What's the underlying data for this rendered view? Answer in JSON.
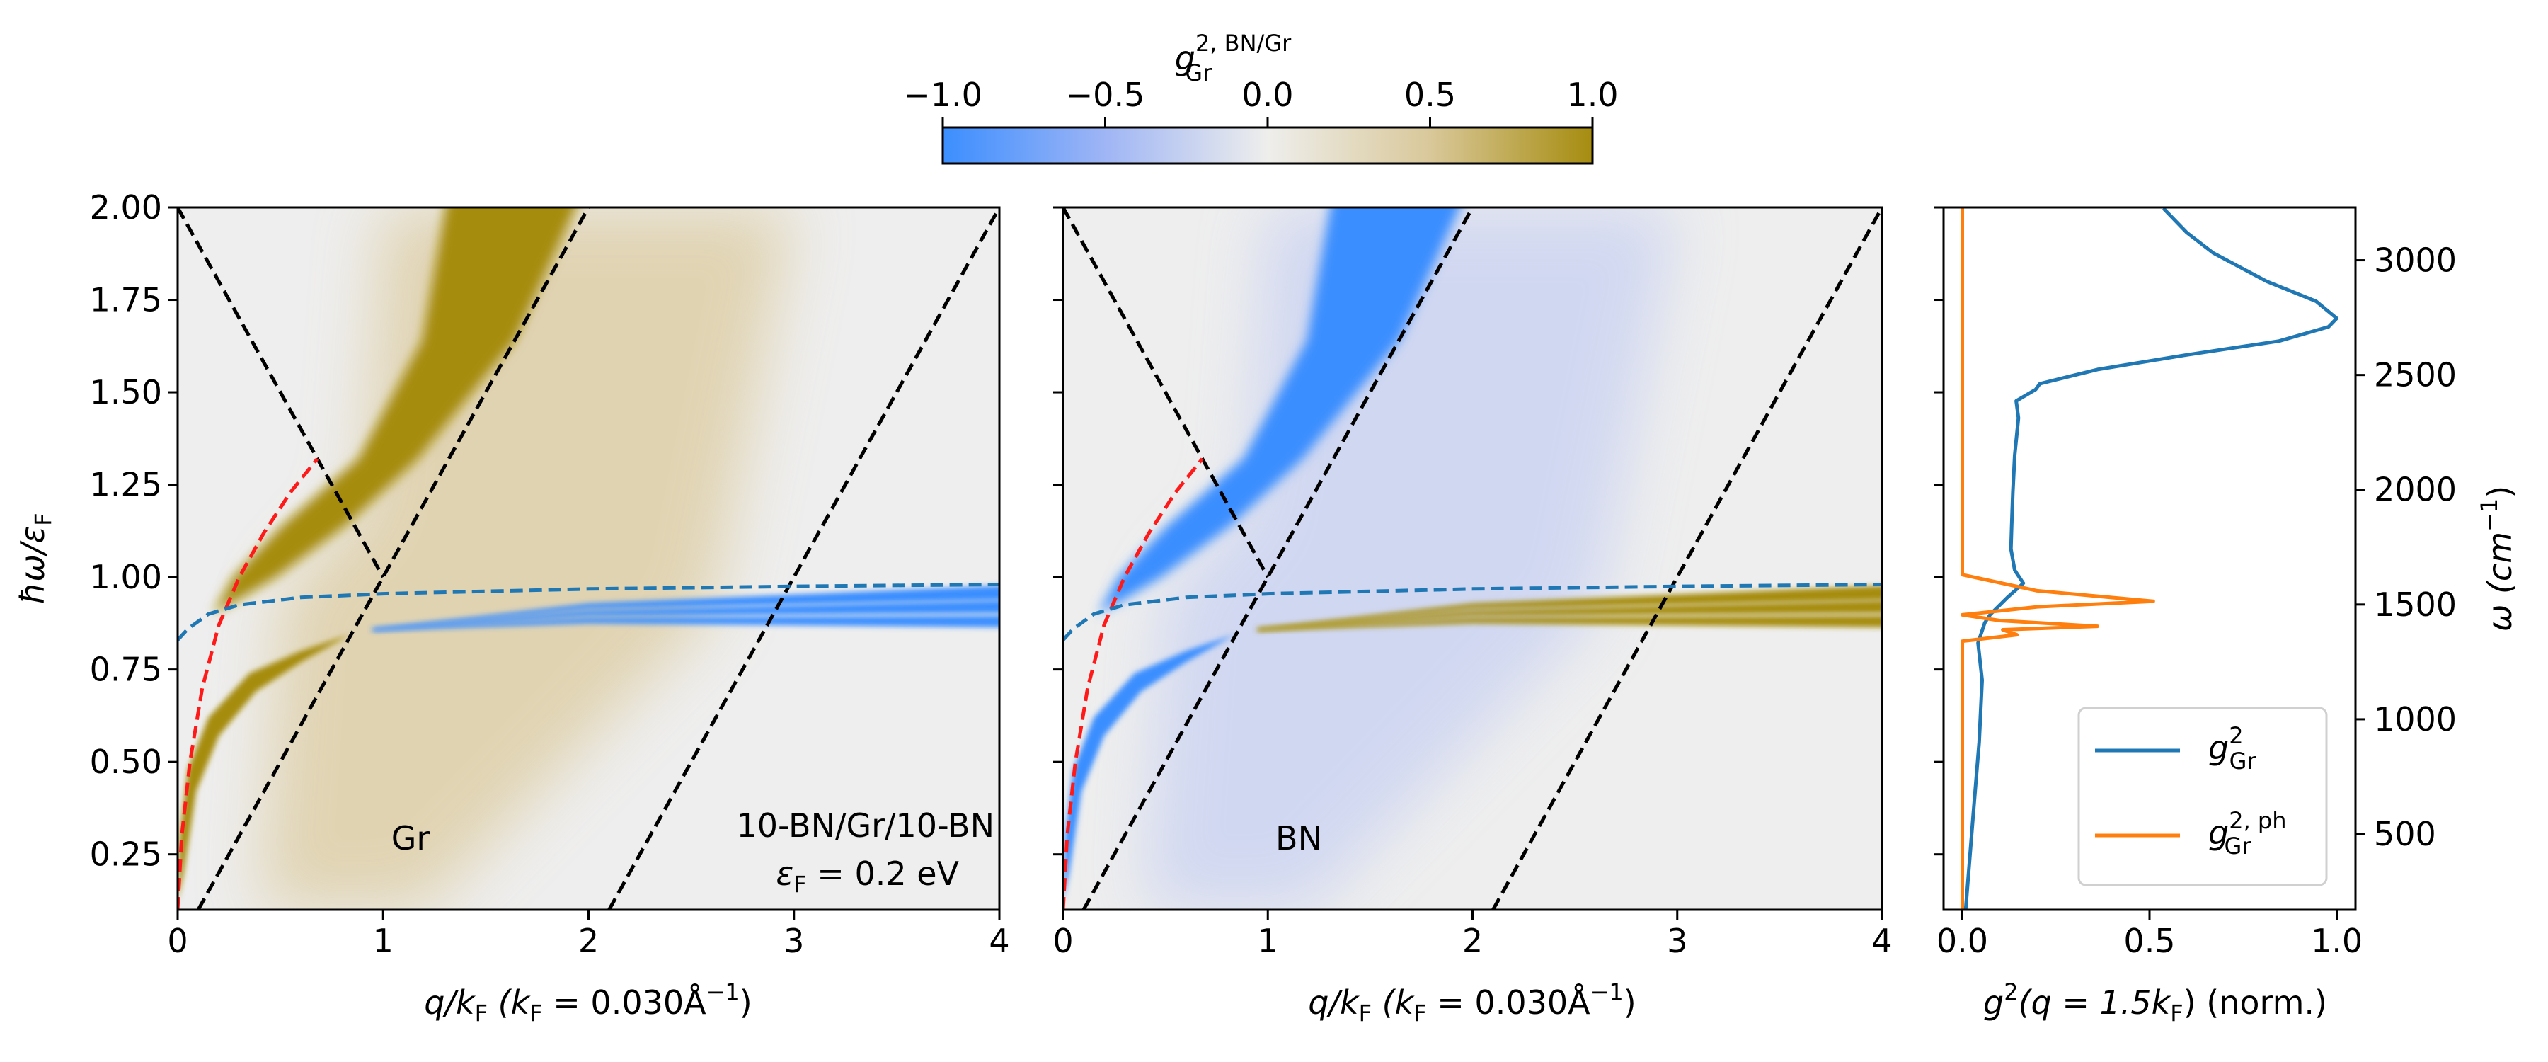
{
  "colorbar": {
    "label_main": "g",
    "label_sup": "2, BN/Gr",
    "label_sub": "Gr",
    "ticks": [
      "−1.0",
      "−0.5",
      "0.0",
      "0.5",
      "1.0"
    ],
    "tick_values": [
      -1.0,
      -0.5,
      0.0,
      0.5,
      1.0
    ],
    "colors": {
      "neg": "#3b8eff",
      "mid": "#eeeeee",
      "pos": "#a68c0f"
    }
  },
  "chart_data": [
    {
      "type": "heatmap",
      "panel": "Gr",
      "annotation": "Gr",
      "system_label": "10-BN/Gr/10-BN",
      "fermi_label_main": "ε",
      "fermi_label_sub": "F",
      "fermi_label_rest": " = 0.2 eV",
      "xlabel_main": "q/k",
      "xlabel_sub": "F",
      "xlabel_rest": "  (k",
      "xlabel_sub2": "F",
      "xlabel_rest2": " = 0.030Å",
      "xlabel_sup": "−1",
      "xlabel_end": ")",
      "ylabel_main": "ħω/ε",
      "ylabel_sub": "F",
      "xlim": [
        0,
        4
      ],
      "ylim": [
        0.1,
        2.0
      ],
      "xticks": [
        "0",
        "1",
        "2",
        "3",
        "4"
      ],
      "yticks": [
        "0.25",
        "0.50",
        "0.75",
        "1.00",
        "1.25",
        "1.50",
        "1.75",
        "2.00"
      ],
      "ytick_values": [
        0.25,
        0.5,
        0.75,
        1.0,
        1.25,
        1.5,
        1.75,
        2.0
      ],
      "guide_lines": {
        "black_dashed": [
          [
            [
              0,
              2.0
            ],
            [
              1.0,
              1.0
            ]
          ],
          [
            [
              0.1,
              0.1
            ],
            [
              2.0,
              2.0
            ]
          ],
          [
            [
              2.1,
              0.1
            ],
            [
              4.0,
              2.0
            ]
          ]
        ],
        "red_dashed": [
          [
            0.0,
            0.1
          ],
          [
            0.02,
            0.3
          ],
          [
            0.06,
            0.5
          ],
          [
            0.12,
            0.7
          ],
          [
            0.2,
            0.87
          ],
          [
            0.3,
            1.0
          ],
          [
            0.42,
            1.12
          ],
          [
            0.55,
            1.23
          ],
          [
            0.68,
            1.32
          ]
        ],
        "plasmon_blue_dashed": [
          [
            0,
            0.83
          ],
          [
            0.05,
            0.86
          ],
          [
            0.15,
            0.9
          ],
          [
            0.3,
            0.925
          ],
          [
            0.6,
            0.945
          ],
          [
            1.0,
            0.955
          ],
          [
            2.0,
            0.968
          ],
          [
            3.0,
            0.975
          ],
          [
            4.0,
            0.98
          ]
        ]
      },
      "upper_band_sign": 1,
      "streak_sign": -1
    },
    {
      "type": "heatmap",
      "panel": "BN",
      "annotation": "BN",
      "xlabel_main": "q/k",
      "xlabel_sub": "F",
      "xlabel_rest": "  (k",
      "xlabel_sub2": "F",
      "xlabel_rest2": " = 0.030Å",
      "xlabel_sup": "−1",
      "xlabel_end": ")",
      "xlim": [
        0,
        4
      ],
      "ylim": [
        0.1,
        2.0
      ],
      "xticks": [
        "0",
        "1",
        "2",
        "3",
        "4"
      ],
      "upper_band_sign": -1,
      "streak_sign": 1
    },
    {
      "type": "line",
      "panel": "spectrum",
      "xlabel_main": "g",
      "xlabel_sup": "2",
      "xlabel_rest": "(q = 1.5k",
      "xlabel_sub": "F",
      "xlabel_end": ") (norm.)",
      "ylabel_main": "ω (cm",
      "ylabel_sup": "−1",
      "ylabel_end": ")",
      "xlim": [
        -0.05,
        1.05
      ],
      "ylim": [
        170,
        3230
      ],
      "xticks": [
        "0.0",
        "0.5",
        "1.0"
      ],
      "xtick_values": [
        0.0,
        0.5,
        1.0
      ],
      "yticks": [
        "500",
        "1000",
        "1500",
        "2000",
        "2500",
        "3000"
      ],
      "ytick_values": [
        500,
        1000,
        1500,
        2000,
        2500,
        3000
      ],
      "legend_position": "lower-right",
      "series": [
        {
          "name_main": "g",
          "name_sup": "2",
          "name_sub": "Gr",
          "color": "#1f77b4",
          "points": [
            [
              0.009,
              170
            ],
            [
              0.03,
              600
            ],
            [
              0.045,
              900
            ],
            [
              0.053,
              1170
            ],
            [
              0.042,
              1333
            ],
            [
              0.06,
              1420
            ],
            [
              0.075,
              1457
            ],
            [
              0.12,
              1530
            ],
            [
              0.163,
              1593
            ],
            [
              0.14,
              1650
            ],
            [
              0.13,
              1742
            ],
            [
              0.132,
              1850
            ],
            [
              0.135,
              1990
            ],
            [
              0.14,
              2150
            ],
            [
              0.15,
              2313
            ],
            [
              0.144,
              2387
            ],
            [
              0.196,
              2437
            ],
            [
              0.207,
              2462
            ],
            [
              0.361,
              2524
            ],
            [
              0.593,
              2586
            ],
            [
              0.846,
              2648
            ],
            [
              0.978,
              2710
            ],
            [
              1.0,
              2747
            ],
            [
              0.945,
              2821
            ],
            [
              0.813,
              2908
            ],
            [
              0.67,
              3032
            ],
            [
              0.6,
              3120
            ],
            [
              0.537,
              3226
            ]
          ]
        },
        {
          "name_main": "g",
          "name_sup": "2, ph",
          "name_sub": "Gr",
          "color": "#ff7f0e",
          "points": [
            [
              0,
              170
            ],
            [
              0,
              1340
            ],
            [
              0.146,
              1368
            ],
            [
              0.108,
              1390
            ],
            [
              0.361,
              1405
            ],
            [
              0.1,
              1430
            ],
            [
              0,
              1455
            ],
            [
              0.2,
              1490
            ],
            [
              0.51,
              1514
            ],
            [
              0.2,
              1560
            ],
            [
              0,
              1630
            ],
            [
              0,
              3230
            ]
          ]
        }
      ]
    }
  ]
}
